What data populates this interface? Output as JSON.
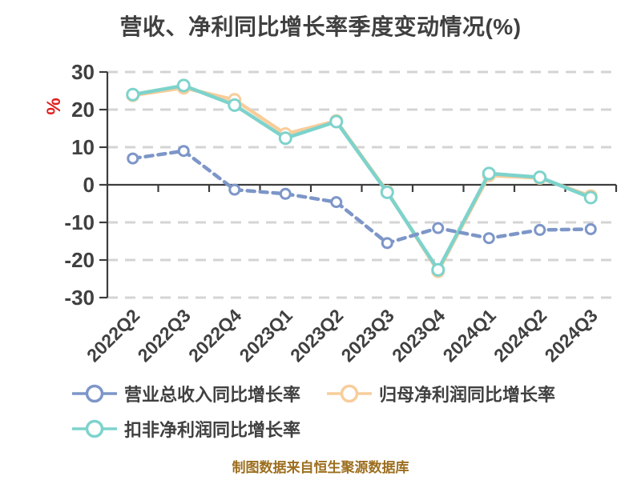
{
  "footer": "制图数据来自恒生聚源数据库",
  "colors": {
    "title": "#404040",
    "tick_label": "#404040",
    "axis": "#3d3d3d",
    "grid": "#d4d4d4",
    "unit_label": "#e02020",
    "footer": "#9c6e1e",
    "marker_fill": "#ffffff"
  },
  "chart_data": {
    "type": "line",
    "title": "营收、净利同比增长率季度变动情况(%)",
    "ylabel": "%",
    "xlabel": "",
    "categories": [
      "2022Q2",
      "2022Q3",
      "2022Q4",
      "2023Q1",
      "2023Q2",
      "2023Q3",
      "2023Q4",
      "2024Q1",
      "2024Q2",
      "2024Q3"
    ],
    "series": [
      {
        "name": "营业总收入同比增长率",
        "color": "#7d96c8",
        "line_style": "dashed",
        "values": [
          7.0,
          9.0,
          -1.3,
          -2.4,
          -4.6,
          -15.5,
          -11.5,
          -14.2,
          -12.0,
          -11.8
        ]
      },
      {
        "name": "归母净利润同比增长率",
        "color": "#f8cd9b",
        "line_style": "solid",
        "values": [
          23.8,
          25.8,
          22.6,
          13.5,
          17.0,
          -1.8,
          -23.0,
          2.5,
          1.8,
          -3.0
        ]
      },
      {
        "name": "扣非净利润同比增长率",
        "color": "#7dd3cc",
        "line_style": "solid",
        "values": [
          24.0,
          26.4,
          21.2,
          12.4,
          16.8,
          -2.0,
          -22.6,
          3.0,
          2.0,
          -3.4
        ]
      }
    ],
    "ylim": [
      -30,
      30
    ],
    "yticks": [
      30,
      20,
      10,
      0,
      -10,
      -20,
      -30
    ],
    "grid": "horizontal dashed",
    "legend_position": "bottom-left",
    "x_tick_rotation": -45
  }
}
